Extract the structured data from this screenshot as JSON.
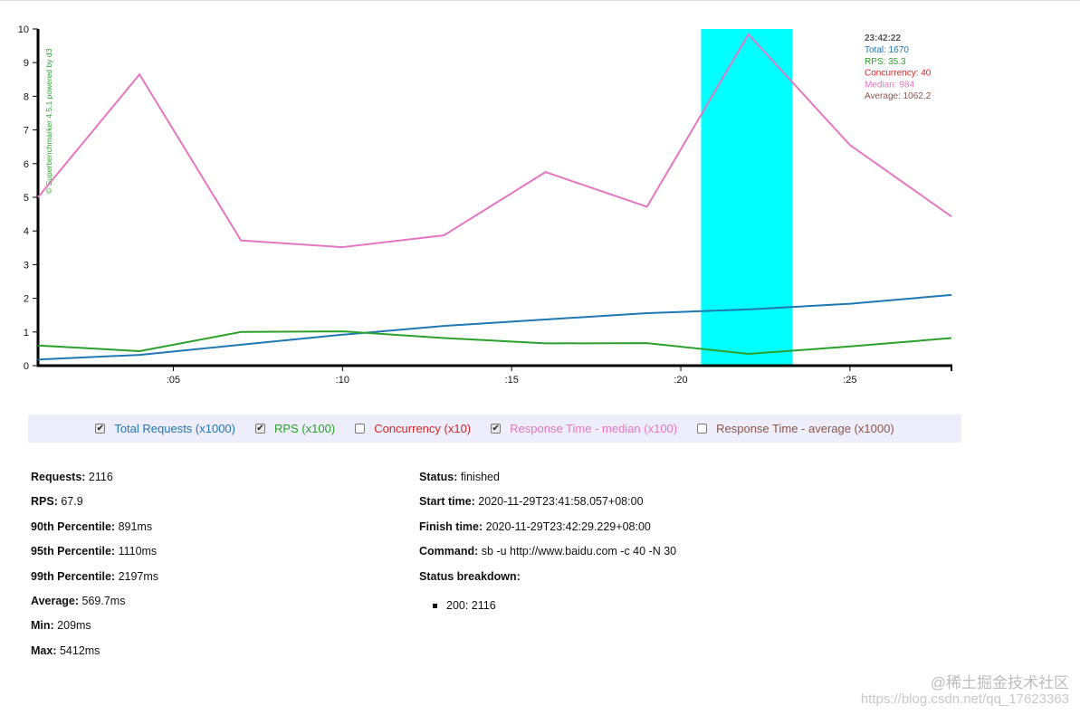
{
  "chart_data": {
    "type": "line",
    "x_tick_labels": [
      ":05",
      ":10",
      ":15",
      ":20",
      ":25"
    ],
    "x_tick_seconds": [
      5,
      10,
      15,
      20,
      25
    ],
    "x_range": [
      1,
      28
    ],
    "ylim": [
      0,
      10
    ],
    "y_ticks": [
      0,
      1,
      2,
      3,
      4,
      5,
      6,
      7,
      8,
      9,
      10
    ],
    "watermark": "© Superbenchmarker 4.5.1 powered by d3",
    "highlight": {
      "from": 20.6,
      "to": 23.3,
      "color": "#00ffff"
    },
    "series": [
      {
        "name": "Total Requests (x1000)",
        "color": "#1f77b4",
        "x": [
          1,
          4,
          7,
          10,
          13,
          16,
          19,
          22,
          25,
          28
        ],
        "values": [
          0.18,
          0.32,
          0.62,
          0.92,
          1.18,
          1.37,
          1.56,
          1.67,
          1.84,
          2.1
        ]
      },
      {
        "name": "RPS (x100)",
        "color": "#2ca02c",
        "x": [
          1,
          4,
          7,
          10,
          13,
          16,
          19,
          22,
          25,
          28
        ],
        "values": [
          0.6,
          0.43,
          1.0,
          1.02,
          0.82,
          0.66,
          0.67,
          0.35,
          0.57,
          0.82
        ]
      },
      {
        "name": "Response Time - median (x100)",
        "color": "#e377c2",
        "x": [
          1,
          4,
          7,
          10,
          13,
          16,
          19,
          22,
          25,
          28
        ],
        "values": [
          5.0,
          8.65,
          3.72,
          3.52,
          3.87,
          5.75,
          4.72,
          9.84,
          6.55,
          4.43
        ]
      }
    ],
    "tooltip": {
      "time": "23:42:22",
      "lines": [
        {
          "text": "Total: 1670",
          "color": "#1f77b4"
        },
        {
          "text": "RPS: 35.3",
          "color": "#2ca02c"
        },
        {
          "text": "Concurrency: 40",
          "color": "#d62728"
        },
        {
          "text": "Median: 984",
          "color": "#e377c2"
        },
        {
          "text": "Average: 1062.2",
          "color": "#8c564b"
        }
      ]
    }
  },
  "legend": [
    {
      "label": "Total Requests (x1000)",
      "checked": true,
      "color": "#1f77b4"
    },
    {
      "label": "RPS (x100)",
      "checked": true,
      "color": "#2ca02c"
    },
    {
      "label": "Concurrency (x10)",
      "checked": false,
      "color": "#d62728"
    },
    {
      "label": "Response Time - median (x100)",
      "checked": true,
      "color": "#e377c2"
    },
    {
      "label": "Response Time - average (x1000)",
      "checked": false,
      "color": "#8c564b"
    }
  ],
  "stats_left": [
    {
      "label": "Requests:",
      "value": "2116"
    },
    {
      "label": "RPS:",
      "value": "67.9"
    },
    {
      "label": "90th Percentile:",
      "value": "891ms"
    },
    {
      "label": "95th Percentile:",
      "value": "1110ms"
    },
    {
      "label": "99th Percentile:",
      "value": "2197ms"
    },
    {
      "label": "Average:",
      "value": "569.7ms"
    },
    {
      "label": "Min:",
      "value": "209ms"
    },
    {
      "label": "Max:",
      "value": "5412ms"
    }
  ],
  "stats_right": [
    {
      "label": "Status:",
      "value": "finished"
    },
    {
      "label": "Start time:",
      "value": "2020-11-29T23:41:58.057+08:00"
    },
    {
      "label": "Finish time:",
      "value": "2020-11-29T23:42:29.229+08:00"
    },
    {
      "label": "Command:",
      "value": "sb -u http://www.baidu.com -c 40 -N 30"
    },
    {
      "label": "Status breakdown:",
      "value": ""
    }
  ],
  "status_breakdown": [
    "200: 2116"
  ],
  "page_watermark": {
    "line1": "@稀土掘金技术社区",
    "line2": "https://blog.csdn.net/qq_17623363"
  }
}
